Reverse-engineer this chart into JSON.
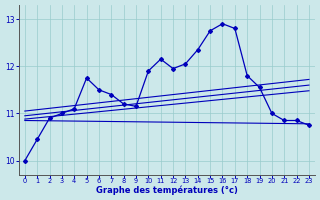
{
  "xlabel": "Graphe des températures (°c)",
  "bg_color": "#cce8ea",
  "line_color": "#0000bb",
  "grid_color": "#99cccc",
  "hours": [
    0,
    1,
    2,
    3,
    4,
    5,
    6,
    7,
    8,
    9,
    10,
    11,
    12,
    13,
    14,
    15,
    16,
    17,
    18,
    19,
    20,
    21,
    22,
    23
  ],
  "temps": [
    10.0,
    10.45,
    10.9,
    11.0,
    11.1,
    11.75,
    11.5,
    11.4,
    11.2,
    11.15,
    11.9,
    12.15,
    11.95,
    12.05,
    12.35,
    12.75,
    12.9,
    12.8,
    11.8,
    11.55,
    11.0,
    10.85,
    10.85,
    10.75
  ],
  "ylim": [
    9.7,
    13.3
  ],
  "yticks": [
    10,
    11,
    12,
    13
  ],
  "xticks": [
    0,
    1,
    2,
    3,
    4,
    5,
    6,
    7,
    8,
    9,
    10,
    11,
    12,
    13,
    14,
    15,
    16,
    17,
    18,
    19,
    20,
    21,
    22,
    23
  ],
  "fan_lines": [
    {
      "x0": 0,
      "y0": 10.85,
      "x1": 23,
      "y1": 10.78
    },
    {
      "x0": 0,
      "y0": 10.88,
      "x1": 23,
      "y1": 11.48
    },
    {
      "x0": 0,
      "y0": 10.95,
      "x1": 23,
      "y1": 11.6
    },
    {
      "x0": 0,
      "y0": 11.05,
      "x1": 23,
      "y1": 11.72
    }
  ]
}
